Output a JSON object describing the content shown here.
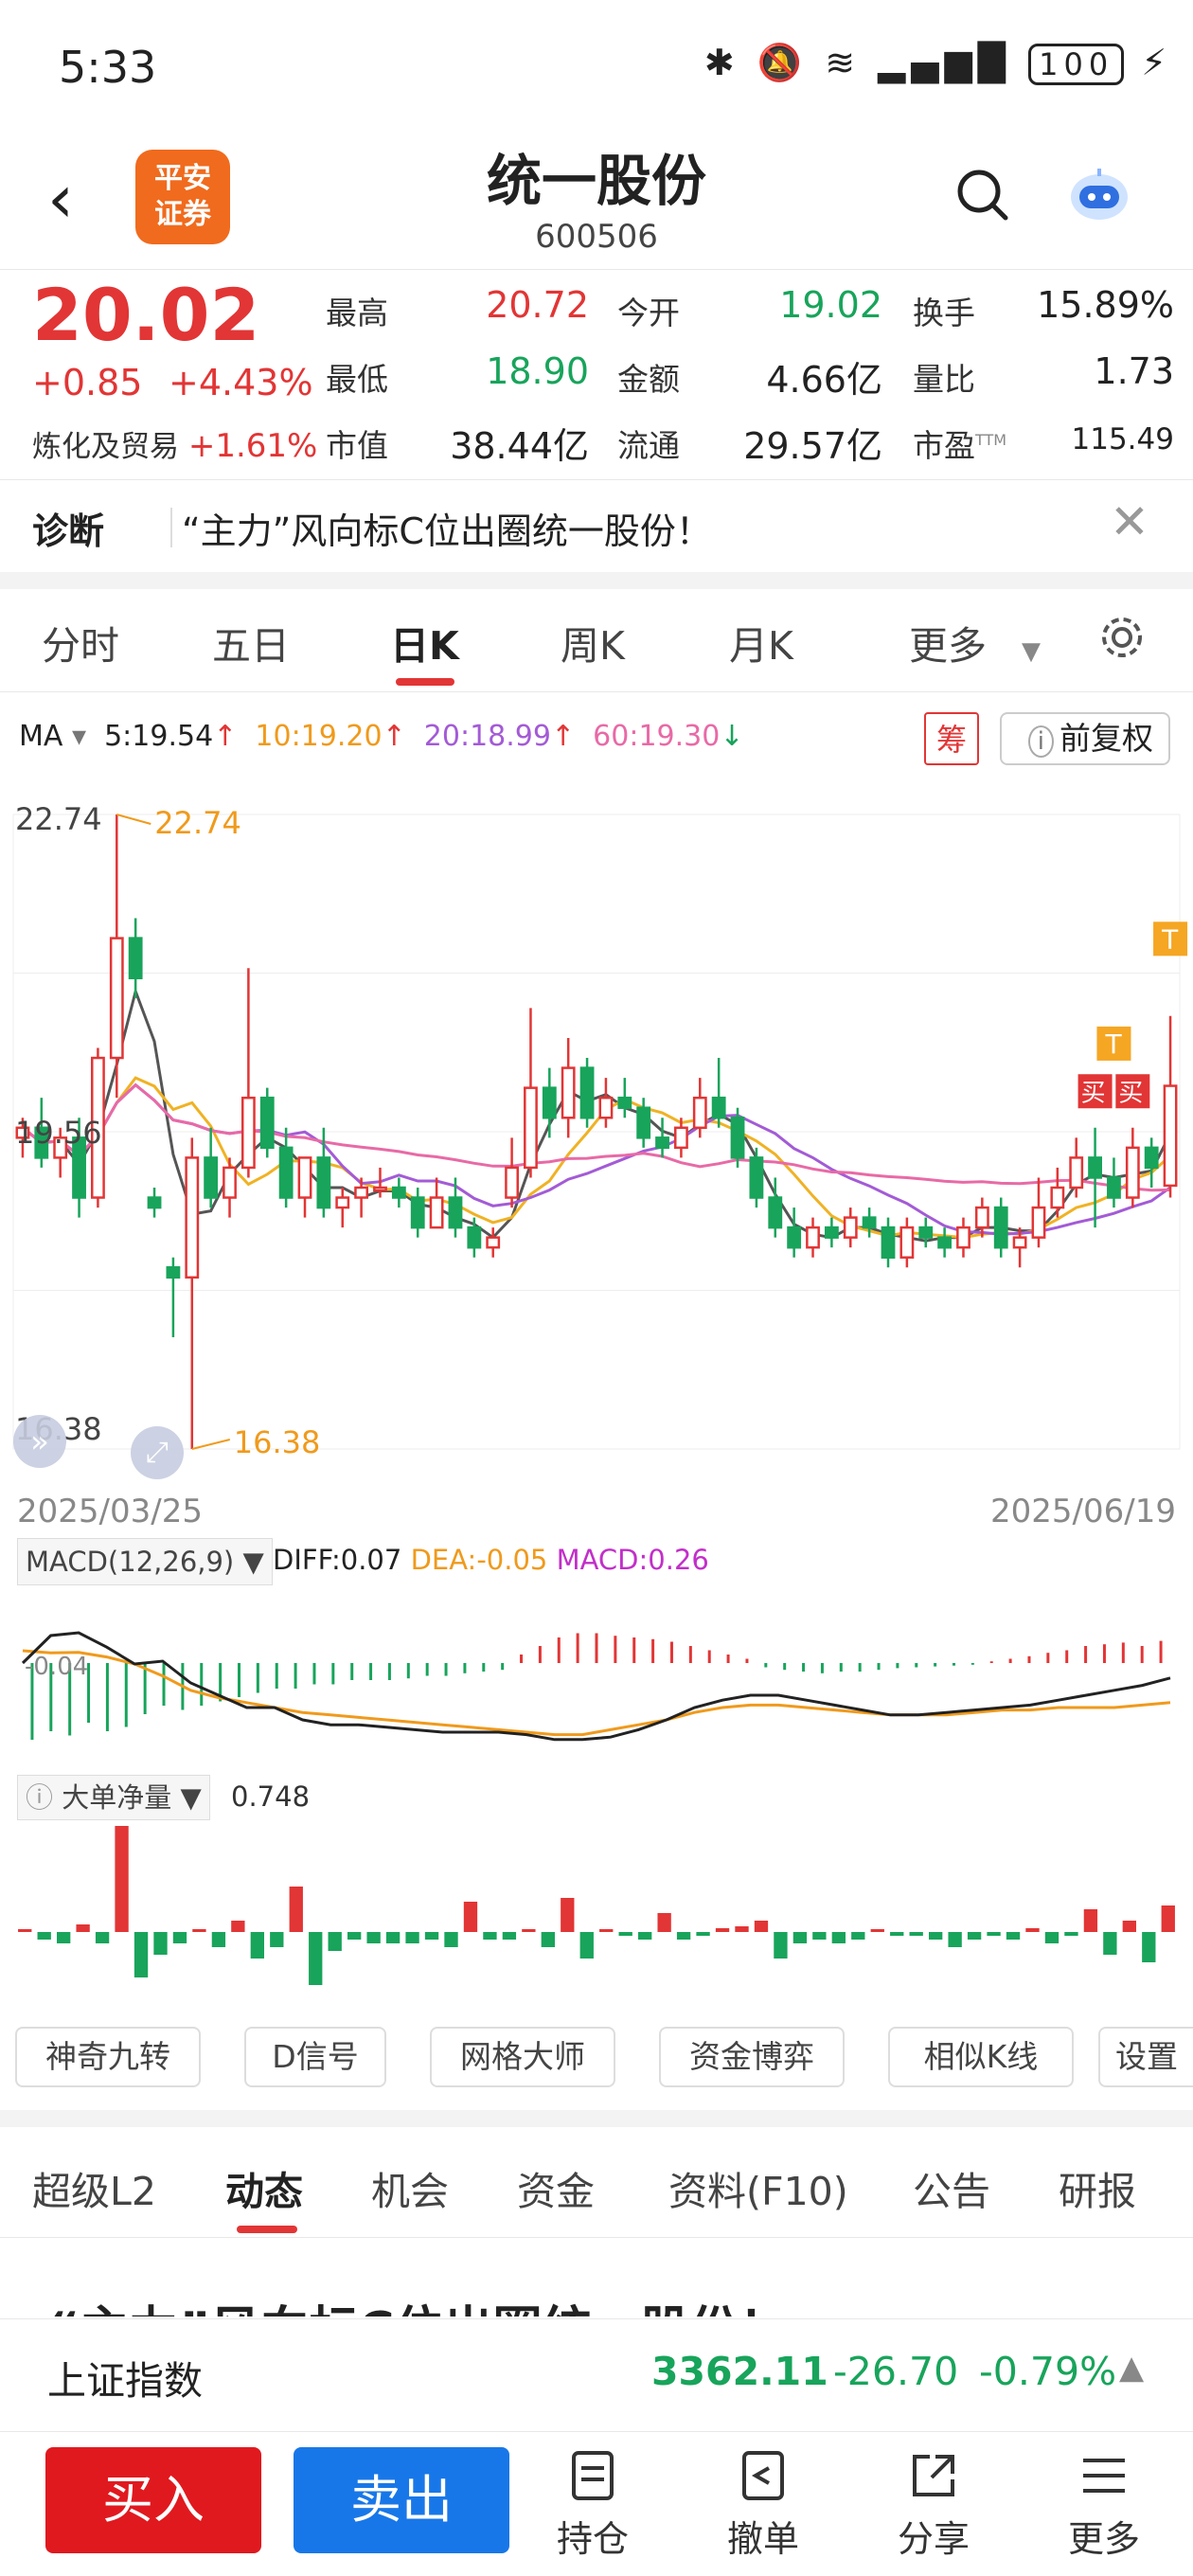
{
  "status": {
    "time": "5:33",
    "battery": "100"
  },
  "header": {
    "logo_line1": "平安",
    "logo_line2": "证券",
    "name": "统一股份",
    "code": "600506"
  },
  "quote": {
    "price": "20.02",
    "change": "+0.85",
    "change_pct": "+4.43%",
    "sector": "炼化及贸易",
    "sector_pct": "+1.61%",
    "high_label": "最高",
    "high": "20.72",
    "low_label": "最低",
    "low": "18.90",
    "cap_label": "市值",
    "cap": "38.44亿",
    "open_label": "今开",
    "open": "19.02",
    "amount_label": "金额",
    "amount": "4.66亿",
    "float_label": "流通",
    "float": "29.57亿",
    "turnover_label": "换手",
    "turnover": "15.89%",
    "vol_ratio_label": "量比",
    "vol_ratio": "1.73",
    "pe_label": "市盈",
    "pe_sup": "TTM",
    "pe": "115.49"
  },
  "diagnosis": {
    "label": "诊断",
    "text": "“主力”风向标C位出圈统一股份！"
  },
  "ktabs": {
    "minute": "分时",
    "five_day": "五日",
    "day": "日K",
    "week": "周K",
    "month": "月K",
    "more": "更多"
  },
  "ma": {
    "label": "MA",
    "ma5": "5:19.54",
    "ma10": "10:19.20",
    "ma20": "20:18.99",
    "ma60": "60:19.30",
    "chou": "筹",
    "fuquan": "前复权"
  },
  "colors": {
    "up": "#e23535",
    "down": "#18a45b",
    "ma5": "#555555",
    "ma10": "#f0b224",
    "ma20": "#a35bd6",
    "ma60": "#e86aa6"
  },
  "chart_labels": {
    "ymax": "22.74",
    "ymid": "19.56",
    "ymin": "16.38",
    "max_marker": "22.74",
    "min_marker": "16.38",
    "date_start": "2025/03/25",
    "date_end": "2025/06/19",
    "buy_marker": "买",
    "t_marker": "T"
  },
  "chart_data": [
    {
      "type": "candlestick",
      "title": "日K",
      "ylim": [
        16.38,
        22.74
      ],
      "x_range": [
        "2025/03/25",
        "2025/06/19"
      ],
      "series": [
        {
          "name": "MA5",
          "value": 19.54
        },
        {
          "name": "MA10",
          "value": 19.2
        },
        {
          "name": "MA20",
          "value": 18.99
        },
        {
          "name": "MA60",
          "value": 19.3
        }
      ],
      "candles": [
        [
          19.5,
          19.7,
          19.3,
          19.6
        ],
        [
          19.6,
          19.9,
          19.2,
          19.3
        ],
        [
          19.3,
          19.6,
          19.1,
          19.5
        ],
        [
          19.5,
          19.7,
          18.7,
          18.9
        ],
        [
          18.9,
          20.4,
          18.8,
          20.3
        ],
        [
          20.3,
          22.74,
          19.9,
          21.5
        ],
        [
          21.5,
          21.7,
          20.9,
          21.1
        ],
        [
          18.9,
          19.0,
          18.7,
          18.8
        ],
        [
          18.2,
          18.3,
          17.5,
          18.1
        ],
        [
          18.1,
          19.5,
          16.38,
          19.3
        ],
        [
          19.3,
          19.6,
          18.8,
          18.9
        ],
        [
          18.9,
          19.3,
          18.7,
          19.2
        ],
        [
          19.2,
          21.2,
          19.1,
          19.9
        ],
        [
          19.9,
          20.0,
          19.3,
          19.4
        ],
        [
          19.4,
          19.6,
          18.8,
          18.9
        ],
        [
          18.9,
          19.3,
          18.7,
          19.3
        ],
        [
          19.3,
          19.6,
          18.7,
          18.8
        ],
        [
          18.8,
          19.0,
          18.6,
          18.9
        ],
        [
          18.9,
          19.1,
          18.7,
          19.0
        ],
        [
          19.0,
          19.2,
          18.9,
          19.0
        ],
        [
          19.0,
          19.1,
          18.8,
          18.9
        ],
        [
          18.9,
          19.0,
          18.5,
          18.6
        ],
        [
          18.6,
          19.1,
          18.6,
          18.9
        ],
        [
          18.9,
          19.1,
          18.5,
          18.6
        ],
        [
          18.6,
          18.7,
          18.3,
          18.4
        ],
        [
          18.4,
          18.6,
          18.3,
          18.5
        ],
        [
          18.9,
          19.5,
          18.8,
          19.2
        ],
        [
          19.2,
          20.8,
          19.1,
          20.0
        ],
        [
          20.0,
          20.2,
          19.5,
          19.7
        ],
        [
          19.7,
          20.5,
          19.5,
          20.2
        ],
        [
          20.2,
          20.3,
          19.6,
          19.7
        ],
        [
          19.7,
          20.1,
          19.6,
          19.9
        ],
        [
          19.9,
          20.1,
          19.7,
          19.8
        ],
        [
          19.8,
          19.9,
          19.4,
          19.5
        ],
        [
          19.5,
          19.7,
          19.3,
          19.4
        ],
        [
          19.4,
          19.7,
          19.3,
          19.6
        ],
        [
          19.6,
          20.1,
          19.5,
          19.9
        ],
        [
          19.9,
          20.3,
          19.6,
          19.7
        ],
        [
          19.7,
          19.8,
          19.2,
          19.3
        ],
        [
          19.3,
          19.4,
          18.8,
          18.9
        ],
        [
          18.9,
          19.1,
          18.5,
          18.6
        ],
        [
          18.6,
          18.8,
          18.3,
          18.4
        ],
        [
          18.4,
          18.7,
          18.3,
          18.6
        ],
        [
          18.6,
          18.7,
          18.4,
          18.5
        ],
        [
          18.5,
          18.8,
          18.4,
          18.7
        ],
        [
          18.7,
          18.8,
          18.5,
          18.6
        ],
        [
          18.6,
          18.7,
          18.2,
          18.3
        ],
        [
          18.3,
          18.7,
          18.2,
          18.6
        ],
        [
          18.6,
          18.7,
          18.4,
          18.5
        ],
        [
          18.5,
          18.6,
          18.3,
          18.4
        ],
        [
          18.4,
          18.7,
          18.3,
          18.6
        ],
        [
          18.6,
          18.9,
          18.5,
          18.8
        ],
        [
          18.8,
          18.9,
          18.3,
          18.4
        ],
        [
          18.4,
          18.6,
          18.2,
          18.5
        ],
        [
          18.5,
          19.1,
          18.4,
          18.8
        ],
        [
          18.8,
          19.2,
          18.7,
          19.0
        ],
        [
          19.0,
          19.5,
          18.9,
          19.3
        ],
        [
          19.3,
          19.6,
          18.6,
          19.1
        ],
        [
          19.1,
          19.3,
          18.8,
          18.9
        ],
        [
          18.9,
          19.6,
          18.8,
          19.4
        ],
        [
          19.4,
          19.5,
          19.0,
          19.2
        ],
        [
          19.02,
          20.72,
          18.9,
          20.02
        ]
      ]
    },
    {
      "type": "bar",
      "title": "MACD(12,26,9)",
      "series": [
        {
          "name": "DIFF",
          "value": 0.07
        },
        {
          "name": "DEA",
          "value": -0.05
        },
        {
          "name": "MACD",
          "value": 0.26
        }
      ],
      "ytick": "-0.04"
    },
    {
      "type": "bar",
      "title": "大单净量",
      "value": 0.748
    }
  ],
  "macd": {
    "label": "MACD(12,26,9)",
    "diff": "DIFF:0.07",
    "dea": "DEA:-0.05",
    "macd": "MACD:0.26",
    "ytick": "-0.04"
  },
  "bigorder": {
    "label": "大单净量",
    "value": "0.748"
  },
  "tools": [
    "神奇九转",
    "D信号",
    "网格大师",
    "资金博弈",
    "相似K线",
    "设置"
  ],
  "info_tabs": [
    "超级L2",
    "动态",
    "机会",
    "资金",
    "资料(F10)",
    "公告",
    "研报"
  ],
  "article_peek": "“主力”风向标C位出圈统一股份！",
  "index": {
    "name": "上证指数",
    "value": "3362.11",
    "change": "-26.70",
    "pct": "-0.79%"
  },
  "bottom": {
    "buy": "买入",
    "sell": "卖出",
    "hold": "持仓",
    "cancel": "撤单",
    "share": "分享",
    "more": "更多"
  }
}
